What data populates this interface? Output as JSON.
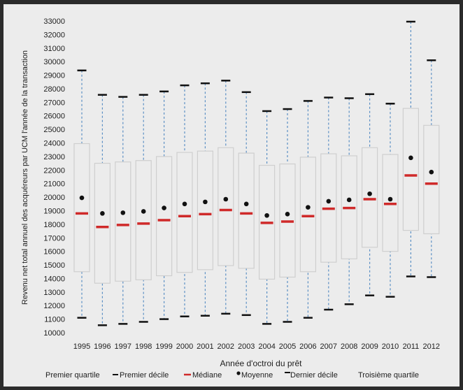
{
  "chart_data": {
    "type": "boxplot",
    "xlabel": "Année d'octroi du prêt",
    "ylabel": "Revenu net total annuel des acquéreurs par UCM  l'année de la  transaction",
    "ylim": [
      10000,
      33000
    ],
    "y_ticks": [
      10000,
      11000,
      12000,
      13000,
      14000,
      15000,
      16000,
      17000,
      18000,
      19000,
      20000,
      21000,
      22000,
      23000,
      24000,
      25000,
      26000,
      27000,
      28000,
      29000,
      30000,
      31000,
      32000,
      33000
    ],
    "grid": false,
    "categories": [
      "1995",
      "1996",
      "1997",
      "1998",
      "1999",
      "2000",
      "2001",
      "2002",
      "2003",
      "2004",
      "2005",
      "2006",
      "2007",
      "2008",
      "2009",
      "2010",
      "2011",
      "2012"
    ],
    "series": {
      "premier_decile": [
        11100,
        10550,
        10650,
        10800,
        11000,
        11200,
        11250,
        11400,
        11300,
        10650,
        10800,
        11100,
        11700,
        12100,
        12750,
        12650,
        14150,
        14100
      ],
      "premier_quartile": [
        14500,
        13650,
        13800,
        13900,
        14200,
        14450,
        14650,
        14950,
        14750,
        13950,
        14100,
        14500,
        15200,
        15450,
        16300,
        16000,
        17550,
        17300
      ],
      "mediane": [
        18800,
        17800,
        17950,
        18050,
        18300,
        18600,
        18750,
        19050,
        18800,
        18100,
        18200,
        18600,
        19150,
        19200,
        19850,
        19500,
        21600,
        21000
      ],
      "moyenne": [
        19950,
        18800,
        18850,
        18950,
        19200,
        19500,
        19650,
        19850,
        19500,
        18650,
        18750,
        19250,
        19700,
        19800,
        20250,
        19850,
        22900,
        21850
      ],
      "troisieme_quartile": [
        23950,
        22500,
        22600,
        22700,
        23000,
        23300,
        23400,
        23650,
        23250,
        22350,
        22450,
        22950,
        23200,
        23050,
        23650,
        23150,
        26550,
        25300
      ],
      "dernier_decile": [
        29350,
        27550,
        27400,
        27550,
        27800,
        28250,
        28400,
        28600,
        27750,
        26350,
        26500,
        27100,
        27350,
        27300,
        27600,
        26900,
        32950,
        30100
      ]
    },
    "legend": {
      "position": "bottom",
      "items": [
        "Premier quartile",
        "Premier décile",
        "Médiane",
        "Moyenne",
        "Dernier décile",
        "Troisième quartile"
      ]
    },
    "colors": {
      "median": "#cf2a2a",
      "whisker": "#5b8fc4",
      "mean": "#111111",
      "decile": "#111111",
      "box": "#cfcfcf"
    }
  }
}
